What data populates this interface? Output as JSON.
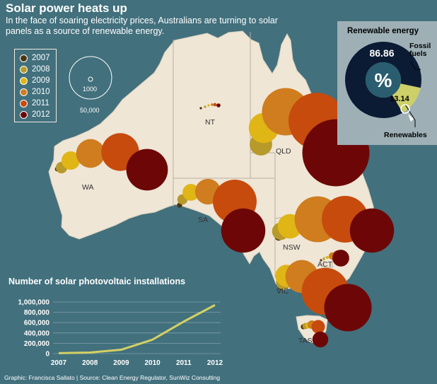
{
  "header": {
    "title": "Solar power heats up",
    "subtitle": "In the face of soaring electricity prices, Australians are turning to solar panels as a source of renewable energy."
  },
  "legend": {
    "items": [
      {
        "label": "2007",
        "color": "#4d3410"
      },
      {
        "label": "2008",
        "color": "#b89a2b"
      },
      {
        "label": "2009",
        "color": "#e0b516"
      },
      {
        "label": "2010",
        "color": "#cf7d1e"
      },
      {
        "label": "2011",
        "color": "#c74b0d"
      },
      {
        "label": "2012",
        "color": "#6d0707"
      }
    ]
  },
  "scale": {
    "small_label": "1000",
    "large_label": "50,000"
  },
  "map": {
    "land_color": "#efe6d6",
    "states": [
      "WA",
      "NT",
      "QLD",
      "SA",
      "NSW",
      "ACT",
      "VIC",
      "TAS"
    ]
  },
  "bubbles": [
    {
      "state": "WA",
      "values": [
        600,
        3500,
        9000,
        22000,
        38000,
        46000
      ]
    },
    {
      "state": "NT",
      "values": [
        20,
        40,
        110,
        180,
        300,
        420
      ]
    },
    {
      "state": "QLD",
      "values": [
        1000,
        13500,
        24000,
        60000,
        85000,
        120000
      ]
    },
    {
      "state": "SA",
      "values": [
        700,
        2800,
        7500,
        17500,
        51000,
        52000
      ]
    },
    {
      "state": "NSW",
      "values": [
        1500,
        8000,
        16000,
        56000,
        58000,
        52000
      ]
    },
    {
      "state": "ACT",
      "values": [
        20,
        80,
        240,
        1400,
        3400,
        7500
      ]
    },
    {
      "state": "VIC",
      "values": [
        1500,
        6000,
        13000,
        29000,
        59000,
        60000
      ]
    },
    {
      "state": "TAS",
      "values": [
        700,
        1000,
        1100,
        1900,
        4800,
        6700
      ]
    }
  ],
  "pie": {
    "title": "Renewable energy",
    "center_label": "%",
    "fossil_value": "86.86",
    "fossil_label": "Fossil fuels",
    "renewable_value": "13.14",
    "renewable_label": "Renewables",
    "fossil_color": "#0c1b34",
    "renewable_color": "#cdd068"
  },
  "chart_data": [
    {
      "type": "line",
      "title": "Number of solar photovoltaic installations",
      "categories": [
        "2007",
        "2008",
        "2009",
        "2010",
        "2011",
        "2012"
      ],
      "values": [
        8000,
        20000,
        75000,
        270000,
        620000,
        940000
      ],
      "ylim": [
        0,
        1000000
      ],
      "yticks": [
        "0",
        "200,000",
        "400,000",
        "600,000",
        "800,000",
        "1,000,000"
      ],
      "xlabel": "",
      "ylabel": "",
      "line_color": "#d3d064",
      "grid": true
    },
    {
      "type": "pie",
      "title": "Renewable energy",
      "labels": [
        "Fossil fuels",
        "Renewables"
      ],
      "values": [
        86.86,
        13.14
      ]
    }
  ],
  "footer": {
    "credit": "Graphic: Francisca Sallato | Source: Clean Energy Regulator, SunWiz Consulting"
  }
}
